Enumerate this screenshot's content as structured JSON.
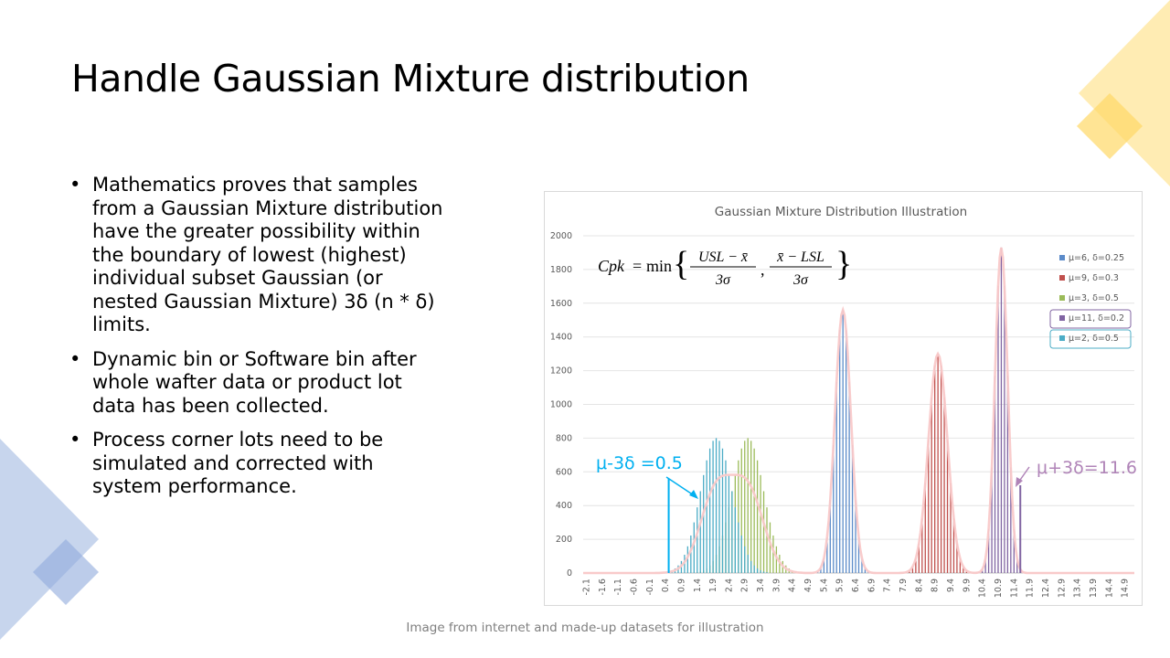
{
  "slide": {
    "title": "Handle Gaussian Mixture distribution",
    "bullets": [
      "Mathematics proves that samples from a Gaussian Mixture distribution have the greater possibility within the boundary of lowest (highest) individual subset Gaussian (or nested Gaussian Mixture) 3δ (n * δ)  limits.",
      "Dynamic bin or Software bin after whole wafter data or product lot data has been collected.",
      "Process corner lots need to be simulated and corrected with system performance."
    ],
    "bullet_glyph": "•",
    "caption": "Image from internet and made-up datasets for illustration",
    "colors": {
      "deco_yellow": "#ffe699",
      "deco_yellow_dark": "#ffd966",
      "deco_blue": "#b4c7e7",
      "deco_blue_dark": "#8faadc"
    }
  },
  "chart_data": {
    "type": "bar",
    "title": "Gaussian Mixture Distribution Illustration",
    "xlabel": "",
    "ylabel": "",
    "ylim": [
      0,
      2000
    ],
    "yticks": [
      0,
      200,
      400,
      600,
      800,
      1000,
      1200,
      1400,
      1600,
      1800,
      2000
    ],
    "x_tick_labels": [
      "-2.1",
      "-1.6",
      "-1.1",
      "-0.6",
      "-0.1",
      "0.4",
      "0.9",
      "1.4",
      "1.9",
      "2.4",
      "2.9",
      "3.4",
      "3.9",
      "4.4",
      "4.9",
      "5.4",
      "5.9",
      "6.4",
      "6.9",
      "7.4",
      "7.9",
      "8.4",
      "8.9",
      "9.4",
      "9.9",
      "10.4",
      "10.9",
      "11.4",
      "11.9",
      "12.4",
      "12.9",
      "13.4",
      "13.9",
      "14.4",
      "14.9"
    ],
    "xlim": [
      -2.2,
      15.2
    ],
    "grid": true,
    "legend_position": "right",
    "series": [
      {
        "name": "μ=6, δ=0.25",
        "mu": 6,
        "sigma": 0.25,
        "peak": 1560,
        "color": "#5b8bc9"
      },
      {
        "name": "μ=9, δ=0.3",
        "mu": 9,
        "sigma": 0.3,
        "peak": 1300,
        "color": "#c0504d"
      },
      {
        "name": "μ=3, δ=0.5",
        "mu": 3,
        "sigma": 0.5,
        "peak": 800,
        "color": "#9bbb59"
      },
      {
        "name": "μ=11, δ=0.2",
        "mu": 11,
        "sigma": 0.2,
        "peak": 1930,
        "color": "#8064a2"
      },
      {
        "name": "μ=2, δ=0.5",
        "mu": 2,
        "sigma": 0.5,
        "peak": 800,
        "color": "#4bacc6"
      }
    ],
    "bin_width": 0.1,
    "envelope_color": "#f9c9c9",
    "formula": {
      "lhs": "Cpk",
      "eq": "=",
      "op": "min",
      "num1": "USL − x̄",
      "num2": "x̄ − LSL",
      "den": "3σ",
      "sep": ","
    },
    "annotations": [
      {
        "text": "μ-3δ =0.5",
        "x": 0.5,
        "color": "#00b0f0",
        "line_top": 560
      },
      {
        "text": "μ+3δ=11.6",
        "x": 11.6,
        "color": "#b084b8",
        "line_top": 520
      }
    ]
  }
}
